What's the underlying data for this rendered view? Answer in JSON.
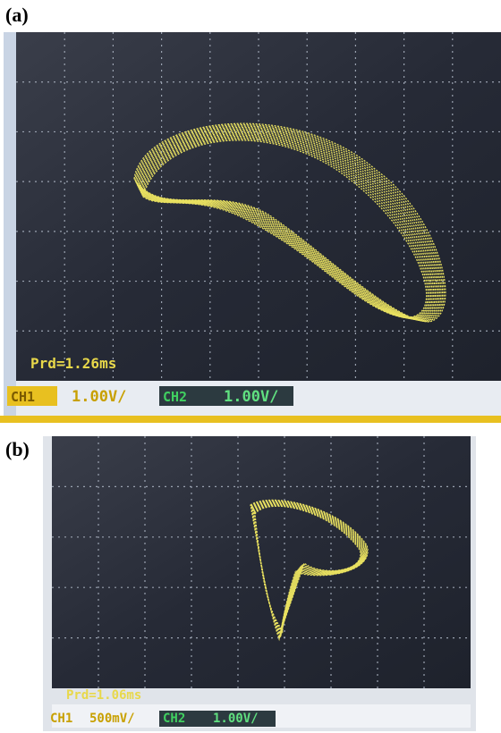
{
  "panels": [
    {
      "label": "(a)",
      "readout": "Prd=1.26ms",
      "ch1": {
        "name": "CH1",
        "scale": "1.00V/"
      },
      "ch2": {
        "name": "CH2",
        "scale": "1.00V/"
      }
    },
    {
      "label": "(b)",
      "readout": "Prd=1.06ms",
      "ch1": {
        "name": "CH1",
        "scale": "500mV/"
      },
      "ch2": {
        "name": "CH2",
        "scale": "1.00V/"
      }
    }
  ]
}
